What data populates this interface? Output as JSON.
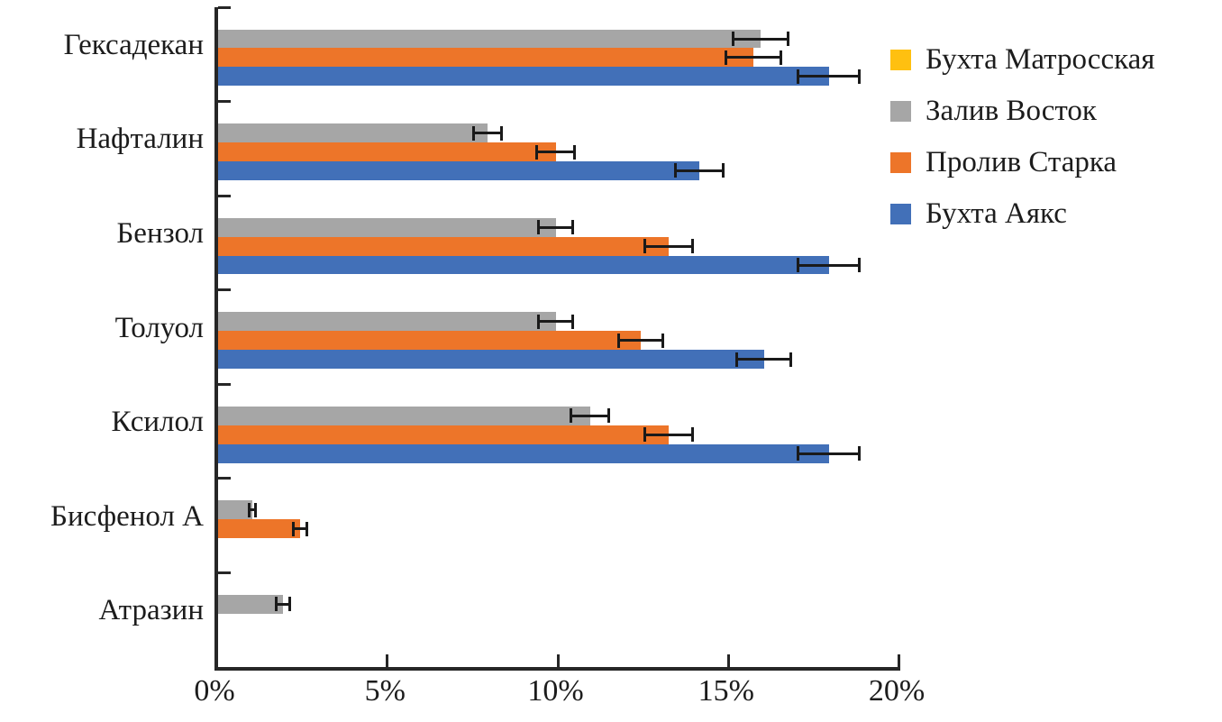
{
  "chart_data": {
    "type": "bar",
    "orientation": "horizontal",
    "title": "",
    "xlabel": "",
    "ylabel": "",
    "categories": [
      "Гексадекан",
      "Нафталин",
      "Бензол",
      "Толуол",
      "Ксилол",
      "Бисфенол А",
      "Атразин"
    ],
    "series": [
      {
        "name": "Бухта Матросская",
        "color": "#FFC010",
        "values": [
          0,
          0,
          0,
          0,
          0,
          0,
          0
        ],
        "errors": [
          0,
          0,
          0,
          0,
          0,
          0,
          0
        ]
      },
      {
        "name": "Залив Восток",
        "color": "#A6A6A6",
        "values": [
          15.9,
          7.9,
          9.9,
          9.9,
          10.9,
          1.0,
          1.9
        ],
        "errors": [
          0.8,
          0.4,
          0.5,
          0.5,
          0.55,
          0.1,
          0.2
        ]
      },
      {
        "name": "Пролив Старка",
        "color": "#ED7529",
        "values": [
          15.7,
          9.9,
          13.2,
          12.4,
          13.2,
          2.4,
          0
        ],
        "errors": [
          0.8,
          0.55,
          0.7,
          0.65,
          0.7,
          0.2,
          0
        ]
      },
      {
        "name": "Бухта Аякс",
        "color": "#4270B8",
        "values": [
          17.9,
          14.1,
          17.9,
          16.0,
          17.9,
          0,
          0
        ],
        "errors": [
          0.9,
          0.7,
          0.9,
          0.8,
          0.9,
          0,
          0
        ]
      }
    ],
    "xlim": [
      0,
      20
    ],
    "x_tick_values": [
      0,
      5,
      10,
      15,
      20
    ],
    "x_tick_labels": [
      "0%",
      "5%",
      "10%",
      "15%",
      "20%"
    ],
    "grid": false,
    "error_bars": true,
    "legend_position": "top-right"
  },
  "colors": {
    "axis": "#262626",
    "error_bar": "#1a1a1a",
    "text": "#1c1c1c",
    "background": "#ffffff"
  }
}
